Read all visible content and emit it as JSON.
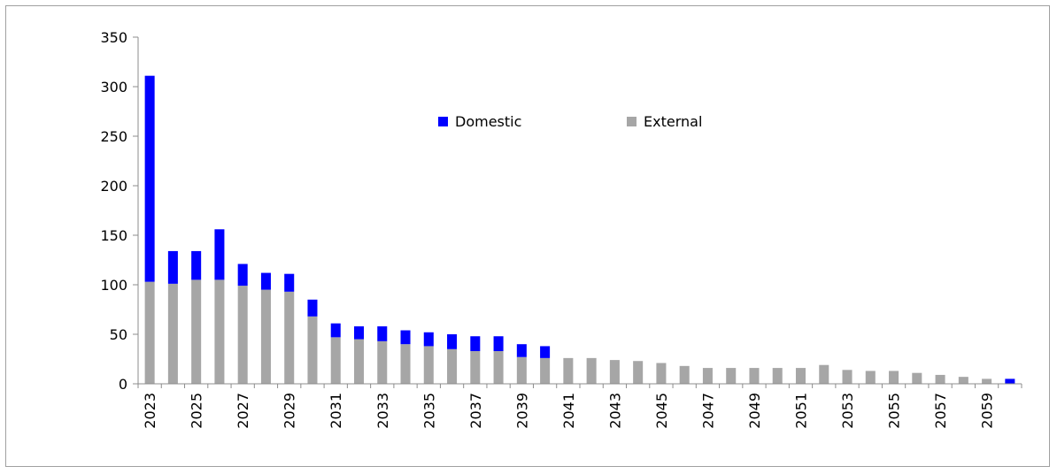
{
  "chart_data": {
    "type": "bar",
    "stacked": true,
    "x": [
      2023,
      2024,
      2025,
      2026,
      2027,
      2028,
      2029,
      2030,
      2031,
      2032,
      2033,
      2034,
      2035,
      2036,
      2037,
      2038,
      2039,
      2040,
      2041,
      2042,
      2043,
      2044,
      2045,
      2046,
      2047,
      2048,
      2049,
      2050,
      2051,
      2052,
      2053,
      2054,
      2055,
      2056,
      2057,
      2058,
      2059,
      2060
    ],
    "xtick_labels": [
      "2023",
      "2025",
      "2027",
      "2029",
      "2031",
      "2033",
      "2035",
      "2037",
      "2039",
      "2041",
      "2043",
      "2045",
      "2047",
      "2049",
      "2051",
      "2053",
      "2055",
      "2057",
      "2059"
    ],
    "series": [
      {
        "name": "External",
        "color": "#a6a6a6",
        "values": [
          103,
          101,
          105,
          105,
          99,
          95,
          93,
          68,
          47,
          45,
          43,
          40,
          38,
          35,
          33,
          33,
          27,
          26,
          26,
          26,
          24,
          23,
          21,
          18,
          16,
          16,
          16,
          16,
          16,
          19,
          14,
          13,
          13,
          11,
          9,
          7,
          5,
          0
        ]
      },
      {
        "name": "Domestic",
        "color": "#0000ff",
        "values": [
          208,
          33,
          29,
          51,
          22,
          17,
          18,
          17,
          14,
          13,
          15,
          14,
          14,
          15,
          15,
          15,
          13,
          12,
          0,
          0,
          0,
          0,
          0,
          0,
          0,
          0,
          0,
          0,
          0,
          0,
          0,
          0,
          0,
          0,
          0,
          0,
          0,
          5
        ]
      }
    ],
    "yticks": [
      "0",
      "50",
      "100",
      "150",
      "200",
      "250",
      "300",
      "350"
    ],
    "ylim": [
      0,
      350
    ],
    "legend": {
      "placement": "top-center",
      "order": [
        "Domestic",
        "External"
      ]
    },
    "grid": false
  }
}
